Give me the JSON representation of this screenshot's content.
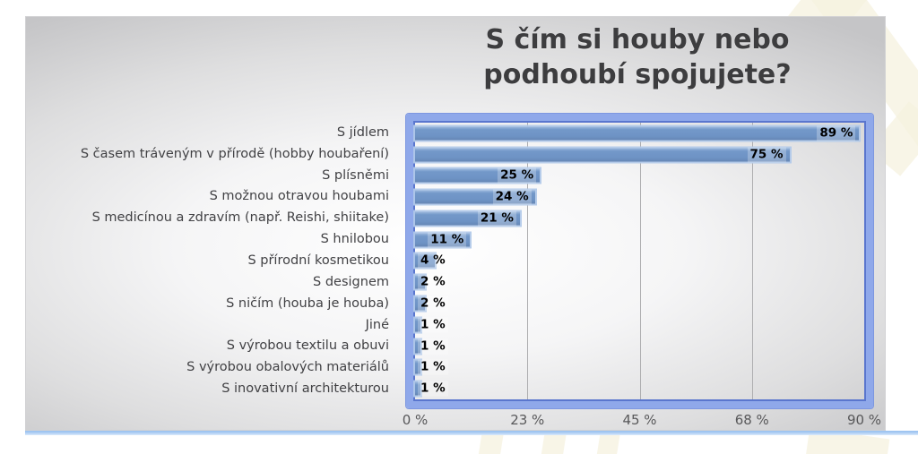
{
  "title": {
    "line1": "S čím si houby nebo",
    "line2": "podhoubí spojujete?"
  },
  "chart_data": {
    "type": "bar",
    "orientation": "horizontal",
    "title": "S čím si houby nebo podhoubí spojujete?",
    "categories": [
      "S jídlem",
      "S časem tráveným v přírodě (hobby houbaření)",
      "S plísněmi",
      "S možnou otravou houbami",
      "S medicínou a zdravím (např. Reishi, shiitake)",
      "S hnilobou",
      "S přírodní kosmetikou",
      "S designem",
      "S ničím (houba je houba)",
      "Jiné",
      "S výrobou textilu a obuvi",
      "S výrobou obalových materiálů",
      "S inovativní architekturou"
    ],
    "values": [
      89,
      75,
      25,
      24,
      21,
      11,
      4,
      2,
      2,
      1,
      1,
      1,
      1
    ],
    "value_labels": [
      "89 %",
      "75 %",
      "25 %",
      "24 %",
      "21 %",
      "11 %",
      "4 %",
      "2 %",
      "2 %",
      "1 %",
      "1 %",
      "1 %",
      "1 %"
    ],
    "x_ticks": [
      "0 %",
      "23 %",
      "45 %",
      "68 %",
      "90 %"
    ],
    "xlim": [
      0,
      90
    ],
    "xlabel": "",
    "ylabel": "",
    "grid": true,
    "legend": false,
    "colors": {
      "bar_fill": "#6e93c5",
      "bar_halo": "#b2c9e9",
      "frame_outer": "#8fa8ea",
      "frame_inner_line": "#5a76ce",
      "gridline": "#aeaeb0",
      "data_label_text": "#000000",
      "tick_text": "#58585a",
      "category_text": "#414144",
      "title_text": "#3d3d3f",
      "bottom_strip": "#a9cbf2",
      "panel_gradient_edge": "#c5c5c7"
    }
  }
}
